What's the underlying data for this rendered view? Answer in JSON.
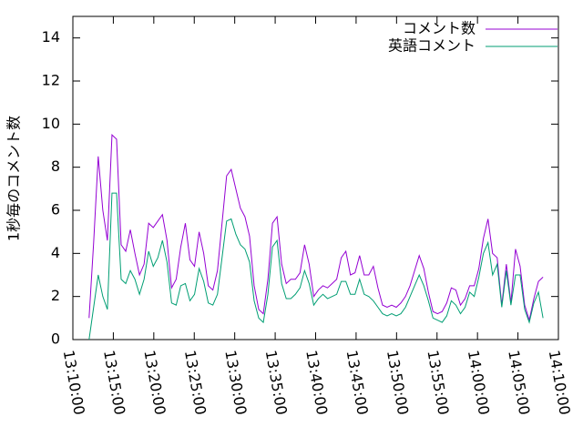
{
  "chart_data": {
    "type": "line",
    "ylabel": "1秒毎のコメント数",
    "x": [
      "13:12:00",
      "13:12:34",
      "13:13:08",
      "13:13:42",
      "13:14:16",
      "13:14:50",
      "13:15:24",
      "13:15:58",
      "13:16:32",
      "13:17:06",
      "13:17:40",
      "13:18:14",
      "13:18:48",
      "13:19:22",
      "13:19:56",
      "13:20:30",
      "13:21:04",
      "13:21:38",
      "13:22:12",
      "13:22:46",
      "13:23:20",
      "13:23:54",
      "13:24:28",
      "13:25:02",
      "13:25:36",
      "13:26:10",
      "13:26:44",
      "13:27:18",
      "13:27:52",
      "13:28:26",
      "13:29:00",
      "13:29:34",
      "13:30:08",
      "13:30:42",
      "13:31:16",
      "13:31:50",
      "13:32:24",
      "13:32:58",
      "13:33:32",
      "13:34:06",
      "13:34:40",
      "13:35:14",
      "13:35:48",
      "13:36:22",
      "13:36:56",
      "13:37:30",
      "13:38:04",
      "13:38:38",
      "13:39:12",
      "13:39:46",
      "13:40:20",
      "13:40:54",
      "13:41:28",
      "13:42:02",
      "13:42:36",
      "13:43:10",
      "13:43:44",
      "13:44:18",
      "13:44:52",
      "13:45:26",
      "13:46:00",
      "13:46:34",
      "13:47:08",
      "13:47:42",
      "13:48:16",
      "13:48:50",
      "13:49:24",
      "13:49:58",
      "13:50:32",
      "13:51:06",
      "13:51:40",
      "13:52:14",
      "13:52:48",
      "13:53:22",
      "13:53:56",
      "13:54:30",
      "13:55:04",
      "13:55:38",
      "13:56:12",
      "13:56:46",
      "13:57:20",
      "13:57:54",
      "13:58:28",
      "13:59:02",
      "13:59:36",
      "14:00:10",
      "14:00:44",
      "14:01:18",
      "14:01:52",
      "14:02:26",
      "14:03:00",
      "14:03:34",
      "14:04:08",
      "14:04:42",
      "14:05:16",
      "14:05:50",
      "14:06:24",
      "14:06:58",
      "14:07:32",
      "14:08:06"
    ],
    "series": [
      {
        "name": "コメント数",
        "color": "#9400d3",
        "values": [
          1.0,
          4.5,
          8.5,
          6.0,
          4.6,
          9.5,
          9.3,
          4.4,
          4.1,
          5.1,
          4.0,
          3.0,
          3.5,
          5.4,
          5.2,
          5.5,
          5.8,
          4.6,
          2.4,
          2.8,
          4.3,
          5.4,
          3.7,
          3.4,
          5.0,
          4.0,
          2.5,
          2.3,
          3.2,
          5.4,
          7.6,
          7.9,
          7.0,
          6.1,
          5.7,
          4.8,
          2.5,
          1.4,
          1.2,
          2.8,
          5.4,
          5.7,
          3.5,
          2.6,
          2.8,
          2.8,
          3.1,
          4.4,
          3.5,
          2.0,
          2.3,
          2.5,
          2.4,
          2.6,
          2.8,
          3.8,
          4.1,
          3.0,
          3.1,
          3.9,
          3.0,
          3.0,
          3.4,
          2.4,
          1.6,
          1.5,
          1.6,
          1.5,
          1.7,
          2.0,
          2.5,
          3.2,
          3.9,
          3.3,
          2.2,
          1.3,
          1.2,
          1.3,
          1.7,
          2.4,
          2.3,
          1.6,
          1.9,
          2.5,
          2.5,
          3.3,
          4.7,
          5.6,
          4.0,
          3.8,
          1.6,
          3.5,
          1.7,
          4.2,
          3.4,
          1.6,
          0.9,
          1.9,
          2.7,
          2.9
        ]
      },
      {
        "name": "英語コメント",
        "color": "#009e73",
        "values": [
          0.0,
          1.5,
          3.0,
          2.0,
          1.4,
          6.8,
          6.8,
          2.8,
          2.6,
          3.2,
          2.8,
          2.1,
          2.8,
          4.1,
          3.4,
          3.8,
          4.6,
          3.6,
          1.7,
          1.6,
          2.5,
          2.6,
          1.8,
          2.1,
          3.3,
          2.7,
          1.7,
          1.6,
          2.1,
          3.8,
          5.5,
          5.6,
          4.9,
          4.4,
          4.2,
          3.6,
          1.8,
          1.0,
          0.8,
          2.1,
          4.3,
          4.6,
          2.6,
          1.9,
          1.9,
          2.1,
          2.4,
          3.2,
          2.6,
          1.6,
          1.9,
          2.1,
          1.9,
          2.0,
          2.1,
          2.7,
          2.7,
          2.1,
          2.1,
          2.8,
          2.1,
          2.0,
          1.8,
          1.5,
          1.2,
          1.1,
          1.2,
          1.1,
          1.2,
          1.5,
          2.0,
          2.5,
          3.0,
          2.5,
          1.8,
          1.0,
          0.9,
          0.8,
          1.1,
          1.8,
          1.6,
          1.2,
          1.5,
          2.2,
          2.0,
          2.9,
          4.0,
          4.5,
          3.0,
          3.5,
          1.5,
          3.2,
          1.6,
          3.0,
          3.0,
          1.4,
          0.8,
          1.7,
          2.2,
          1.0
        ]
      }
    ],
    "xlim": [
      "13:10:00",
      "14:10:00"
    ],
    "xticks": [
      "13:10:00",
      "13:15:00",
      "13:20:00",
      "13:25:00",
      "13:30:00",
      "13:35:00",
      "13:40:00",
      "13:45:00",
      "13:50:00",
      "13:55:00",
      "14:00:00",
      "14:05:00",
      "14:10:00"
    ],
    "ylim": [
      0,
      15
    ],
    "yticks": [
      0,
      2,
      4,
      6,
      8,
      10,
      12,
      14
    ],
    "legend": "top-right"
  }
}
